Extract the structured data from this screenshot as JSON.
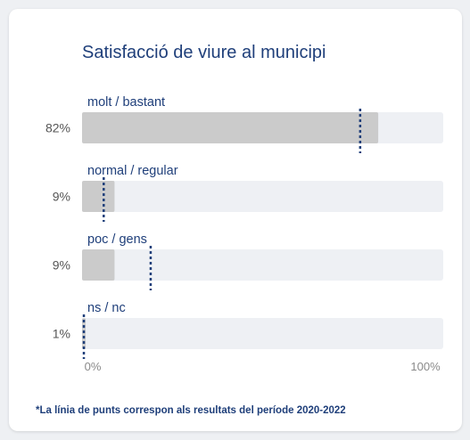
{
  "chart_data": {
    "type": "bar",
    "orientation": "horizontal",
    "title": "Satisfacció de viure al municipi",
    "categories": [
      "molt / bastant",
      "normal / regular",
      "poc / gens",
      "ns / nc"
    ],
    "values": [
      82,
      9,
      9,
      1
    ],
    "value_labels": [
      "82%",
      "9%",
      "9%",
      "1%"
    ],
    "reference_series": {
      "style": "dotted-line",
      "values": [
        77,
        6,
        19,
        0.5
      ]
    },
    "xlim": [
      0,
      100
    ],
    "x_tick_labels": [
      "0%",
      "100%"
    ],
    "colors": {
      "bar": "#cbcbcb",
      "track": "#eef0f4",
      "reference_line": "#1f3f7a",
      "text_dark": "#1f3f7a",
      "text_muted": "#555555"
    }
  },
  "footnote": "*La línia de punts correspon als resultats del període 2020-2022"
}
